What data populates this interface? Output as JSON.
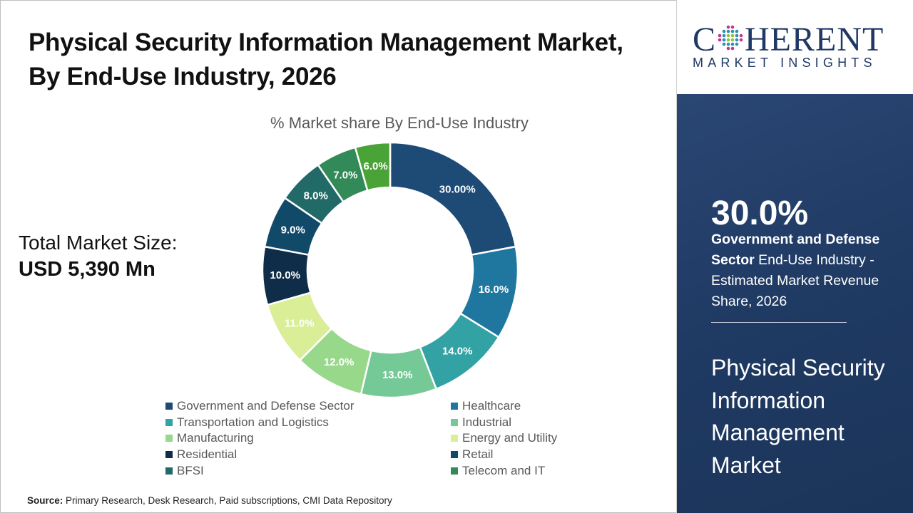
{
  "title": "Physical Security Information Management Market, By End-Use Industry, 2026",
  "total": {
    "label": "Total Market Size:",
    "value": "USD 5,390 Mn"
  },
  "source": {
    "label": "Source:",
    "text": "Primary Research, Desk Research, Paid subscriptions, CMI Data Repository"
  },
  "logo": {
    "main": "COHERENT",
    "sub": "MARKET INSIGHTS"
  },
  "panel": {
    "big": "30.0%",
    "desc_bold": "Government and Defense Sector",
    "desc_rest": " End-Use Industry - Estimated Market Revenue Share, 2026",
    "market_name": "Physical Security Information Management Market"
  },
  "chart_data": {
    "type": "pie",
    "donut": true,
    "title": "% Market share By End-Use Industry",
    "slices": [
      {
        "name": "Government and Defense Sector",
        "value": 30,
        "label": "30.00%",
        "color": "#1d4b76"
      },
      {
        "name": "Healthcare",
        "value": 16,
        "label": "16.0%",
        "color": "#1f77a0"
      },
      {
        "name": "Transportation and Logistics",
        "value": 14,
        "label": "14.0%",
        "color": "#32a2a4"
      },
      {
        "name": "Industrial",
        "value": 13,
        "label": "13.0%",
        "color": "#74c996"
      },
      {
        "name": "Manufacturing",
        "value": 12,
        "label": "12.0%",
        "color": "#98d88a"
      },
      {
        "name": "Energy and Utility",
        "value": 11,
        "label": "11.0%",
        "color": "#d9ee96"
      },
      {
        "name": "Residential",
        "value": 10,
        "label": "10.0%",
        "color": "#0f2d48"
      },
      {
        "name": "Retail",
        "value": 9,
        "label": "9.0%",
        "color": "#114a68"
      },
      {
        "name": "BFSI",
        "value": 8,
        "label": "8.0%",
        "color": "#216a68"
      },
      {
        "name": "Telecom and IT",
        "value": 7,
        "label": "7.0%",
        "color": "#318a57"
      },
      {
        "name": "",
        "value": 6,
        "label": "6.0%",
        "color": "#4aa336"
      }
    ],
    "legend_placement": "bottom"
  }
}
